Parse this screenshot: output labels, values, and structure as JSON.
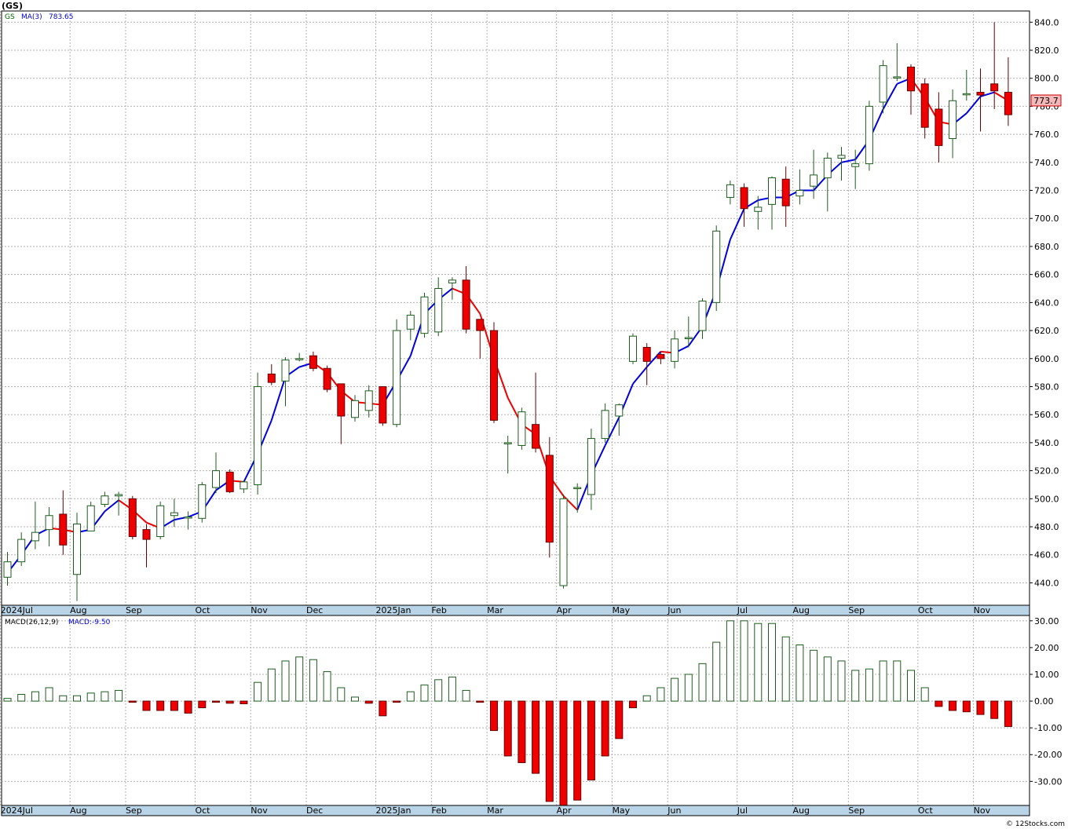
{
  "title": "(GS)",
  "legend": {
    "symbol": "GS",
    "ma_label": "MA(3)",
    "ma_value": "783.65"
  },
  "macd_legend": {
    "label": "MACD(26,12,9)",
    "value_label": "MACD:-9.50"
  },
  "last_price": "773.7",
  "credit": "© 12Stocks.com",
  "colors": {
    "up": "#ffffff",
    "up_border": "#1e5c1e",
    "down": "#ee0000",
    "ma_up": "#0000dd",
    "ma_down": "#ee0000",
    "grid": "#b0b0b0",
    "axis_band": "#b8d4e6"
  },
  "chart_data": [
    {
      "type": "candlestick",
      "title": "(GS)",
      "ylim": [
        424,
        848
      ],
      "y_ticks": [
        440,
        460,
        480,
        500,
        520,
        540,
        560,
        580,
        600,
        620,
        640,
        660,
        680,
        700,
        720,
        740,
        760,
        780,
        800,
        820,
        840
      ],
      "x_labels": [
        "2024Jul",
        "Aug",
        "Sep",
        "Oct",
        "Nov",
        "Dec",
        "2025Jan",
        "Feb",
        "Mar",
        "Apr",
        "May",
        "Jun",
        "Jul",
        "Aug",
        "Sep",
        "Oct",
        "Nov"
      ],
      "x_label_weeks": [
        0,
        5,
        9,
        14,
        18,
        22,
        27,
        31,
        35,
        40,
        44,
        48,
        53,
        57,
        61,
        66,
        70
      ],
      "grid": true,
      "candles": [
        [
          444,
          455,
          438,
          462
        ],
        [
          455,
          471,
          452,
          476
        ],
        [
          470,
          476,
          464,
          498
        ],
        [
          478,
          488,
          466,
          494
        ],
        [
          489,
          467,
          460,
          506
        ],
        [
          446,
          482,
          427,
          490
        ],
        [
          477,
          495,
          479,
          498
        ],
        [
          496,
          502,
          494,
          505
        ],
        [
          502,
          503,
          488,
          505
        ],
        [
          500,
          473,
          471,
          502
        ],
        [
          478,
          471,
          451,
          482
        ],
        [
          473,
          495,
          471,
          498
        ],
        [
          488,
          490,
          480,
          500
        ],
        [
          487,
          487,
          478,
          491
        ],
        [
          486,
          510,
          483,
          512
        ],
        [
          508,
          520,
          504,
          533
        ],
        [
          519,
          505,
          504,
          521
        ],
        [
          507,
          512,
          504,
          513
        ],
        [
          510,
          580,
          503,
          590
        ],
        [
          589,
          583,
          581,
          596
        ],
        [
          584,
          599,
          566,
          601
        ],
        [
          600,
          600,
          598,
          604
        ],
        [
          602,
          593,
          591,
          605
        ],
        [
          593,
          578,
          576,
          595
        ],
        [
          582,
          559,
          539,
          582
        ],
        [
          558,
          570,
          555,
          574
        ],
        [
          563,
          577,
          558,
          581
        ],
        [
          580,
          554,
          552,
          580
        ],
        [
          553,
          620,
          551,
          628
        ],
        [
          621,
          631,
          613,
          634
        ],
        [
          618,
          644,
          615,
          647
        ],
        [
          619,
          650,
          616,
          658
        ],
        [
          654,
          656,
          642,
          658
        ],
        [
          656,
          621,
          618,
          666
        ],
        [
          628,
          620,
          600,
          626
        ],
        [
          620,
          556,
          554,
          626
        ],
        [
          540,
          540,
          518,
          545
        ],
        [
          538,
          562,
          535,
          565
        ],
        [
          553,
          536,
          533,
          590
        ],
        [
          531,
          469,
          458,
          544
        ],
        [
          438,
          500,
          436,
          503
        ],
        [
          508,
          508,
          490,
          511
        ],
        [
          503,
          543,
          492,
          550
        ],
        [
          543,
          563,
          540,
          568
        ],
        [
          559,
          567,
          545,
          568
        ],
        [
          598,
          616,
          596,
          618
        ],
        [
          608,
          598,
          581,
          611
        ],
        [
          603,
          600,
          596,
          605
        ],
        [
          598,
          614,
          593,
          620
        ],
        [
          615,
          615,
          608,
          630
        ],
        [
          620,
          641,
          614,
          643
        ],
        [
          640,
          691,
          634,
          695
        ],
        [
          715,
          724,
          710,
          727
        ],
        [
          722,
          707,
          694,
          725
        ],
        [
          705,
          708,
          692,
          716
        ],
        [
          710,
          729,
          692,
          730
        ],
        [
          728,
          709,
          694,
          737
        ],
        [
          716,
          720,
          710,
          735
        ],
        [
          723,
          731,
          714,
          749
        ],
        [
          729,
          743,
          705,
          747
        ],
        [
          743,
          745,
          727,
          751
        ],
        [
          737,
          739,
          721,
          749
        ],
        [
          739,
          780,
          734,
          784
        ],
        [
          783,
          809,
          775,
          813
        ],
        [
          801,
          801,
          798,
          825
        ],
        [
          808,
          791,
          774,
          810
        ],
        [
          796,
          765,
          757,
          800
        ],
        [
          778,
          752,
          740,
          790
        ],
        [
          757,
          784,
          743,
          792
        ],
        [
          789,
          789,
          784,
          806
        ],
        [
          790,
          788,
          762,
          807
        ],
        [
          796,
          791,
          778,
          840
        ],
        [
          790,
          774,
          766,
          815
        ]
      ],
      "ma3": [
        447,
        460,
        474,
        479,
        478,
        476,
        478,
        491,
        499,
        492,
        483,
        479,
        485,
        487,
        491,
        506,
        513,
        512,
        532,
        556,
        587,
        594,
        597,
        590,
        577,
        569,
        568,
        567,
        584,
        602,
        632,
        642,
        650,
        646,
        632,
        600,
        572,
        553,
        546,
        516,
        502,
        492,
        517,
        538,
        558,
        582,
        594,
        605,
        604,
        609,
        623,
        649,
        685,
        707,
        713,
        715,
        715,
        720,
        720,
        731,
        740,
        742,
        756,
        778,
        796,
        800,
        786,
        769,
        767,
        775,
        787,
        790,
        784
      ]
    },
    {
      "type": "bar",
      "title": "MACD(26,12,9)",
      "ylim": [
        -39,
        32
      ],
      "y_ticks": [
        -30,
        -20,
        -10,
        0,
        10,
        20,
        30
      ],
      "x_labels": [
        "2024Jul",
        "Aug",
        "Sep",
        "Oct",
        "Nov",
        "Dec",
        "2025Jan",
        "Feb",
        "Mar",
        "Apr",
        "May",
        "Jun",
        "Jul",
        "Aug",
        "Sep",
        "Oct",
        "Nov"
      ],
      "values": [
        1.0,
        2.5,
        3.5,
        5.0,
        2.0,
        2.0,
        3.0,
        3.5,
        4.0,
        -0.3,
        -3.5,
        -3.5,
        -3.5,
        -4.5,
        -2.5,
        -0.3,
        -0.8,
        -1.0,
        7.0,
        12.0,
        15.0,
        16.5,
        15.5,
        11.0,
        5.0,
        1.5,
        -0.8,
        -5.5,
        -0.3,
        3.5,
        6.0,
        8.0,
        9.0,
        4.0,
        -0.2,
        -11.0,
        -20.5,
        -23.0,
        -27.0,
        -37.5,
        -39.0,
        -37.0,
        -29.5,
        -20.5,
        -14.0,
        -2.5,
        2.0,
        5.0,
        8.5,
        10.0,
        14.0,
        22.0,
        30.0,
        30.0,
        29.0,
        29.0,
        24.0,
        21.0,
        19.0,
        16.5,
        15.0,
        11.5,
        12.0,
        15.0,
        15.0,
        11.5,
        5.0,
        -2.0,
        -3.5,
        -4.0,
        -5.0,
        -6.5,
        -9.5
      ]
    }
  ]
}
